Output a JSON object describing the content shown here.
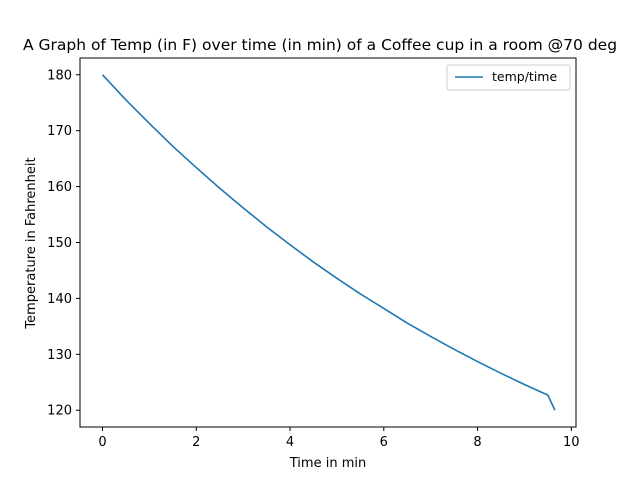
{
  "chart_data": {
    "type": "line",
    "title": "A Graph of Temp (in F) over time (in min) of a Coffee cup in a room @70 deg",
    "xlabel": "Time in min",
    "ylabel": "Temperature in Fahrenheit",
    "xlim": [
      -0.48,
      10.1
    ],
    "ylim": [
      117,
      183
    ],
    "xticks": [
      0,
      2,
      4,
      6,
      8,
      10
    ],
    "yticks": [
      120,
      130,
      140,
      150,
      160,
      170,
      180
    ],
    "grid": false,
    "legend_position": "top-right",
    "series": [
      {
        "name": "temp/time",
        "color": "#1f77b4",
        "x": [
          0,
          0.5,
          1,
          1.5,
          2,
          2.5,
          3,
          3.5,
          4,
          4.5,
          5,
          5.5,
          6,
          6.5,
          7,
          7.5,
          8,
          8.5,
          9,
          9.5,
          9.65
        ],
        "y": [
          180,
          175.5,
          171.3,
          167.2,
          163.4,
          159.7,
          156.2,
          152.8,
          149.6,
          146.5,
          143.6,
          140.8,
          138.2,
          135.6,
          133.2,
          130.9,
          128.7,
          126.6,
          124.6,
          122.7,
          120
        ]
      }
    ]
  }
}
